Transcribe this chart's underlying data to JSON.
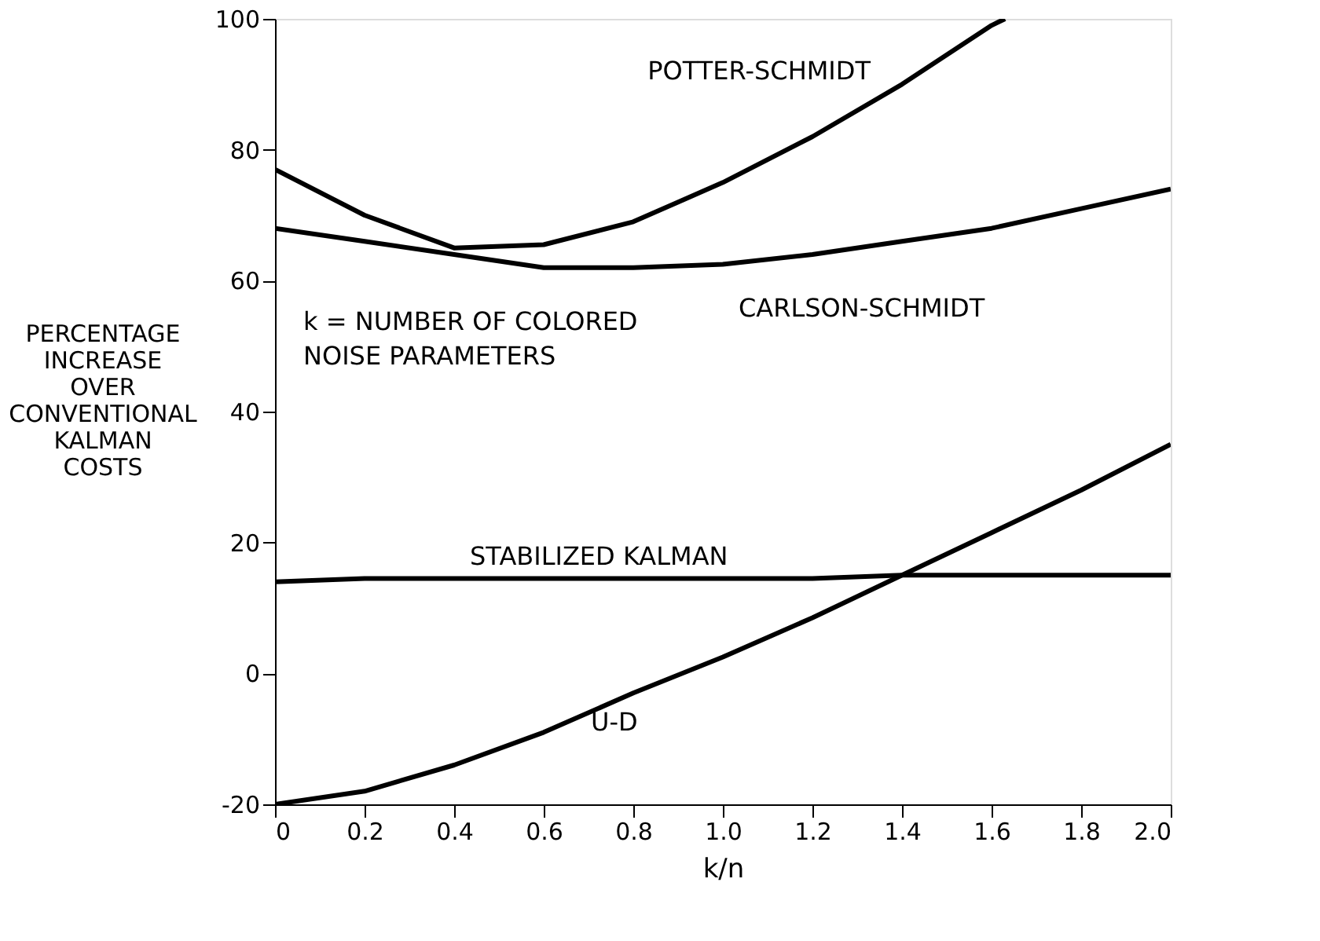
{
  "chart_data": {
    "type": "line",
    "xlabel": "k/n",
    "ylabel": "PERCENTAGE\nINCREASE\nOVER\nCONVENTIONAL\nKALMAN\nCOSTS",
    "x": [
      0,
      0.2,
      0.4,
      0.6,
      0.8,
      1.0,
      1.2,
      1.4,
      1.6,
      1.8,
      2.0
    ],
    "series": [
      {
        "name": "POTTER-SCHMIDT",
        "color": "#000000",
        "x": [
          0,
          0.2,
          0.4,
          0.6,
          0.8,
          1.0,
          1.2,
          1.4,
          1.6,
          1.63
        ],
        "values": [
          77,
          70,
          65,
          65.5,
          69,
          75,
          82,
          90,
          99,
          100
        ]
      },
      {
        "name": "CARLSON-SCHMIDT",
        "color": "#000000",
        "values": [
          68,
          66,
          64,
          62,
          62,
          62.5,
          64,
          66,
          68,
          71,
          74
        ]
      },
      {
        "name": "STABILIZED KALMAN",
        "color": "#000000",
        "values": [
          14,
          14.5,
          14.5,
          14.5,
          14.5,
          14.5,
          14.5,
          15,
          15,
          15,
          15
        ]
      },
      {
        "name": "U-D",
        "color": "#000000",
        "values": [
          -20,
          -18,
          -14,
          -9,
          -3,
          2.5,
          8.5,
          15,
          21.5,
          28,
          35
        ]
      }
    ],
    "annotations": [
      "k = NUMBER OF COLORED\nNOISE PARAMETERS"
    ],
    "xlim": [
      0,
      2.0
    ],
    "ylim": [
      -20,
      100
    ],
    "xticks": [
      0,
      0.2,
      0.4,
      0.6,
      0.8,
      {
        "value": 1,
        "label": "1.0"
      },
      1.2,
      1.4,
      1.6,
      1.8,
      {
        "value": 2,
        "label": "2.0"
      }
    ],
    "yticks": [
      -20,
      0,
      20,
      40,
      60,
      80,
      100
    ],
    "grid": false,
    "marker": "none",
    "line_style": "solid"
  }
}
